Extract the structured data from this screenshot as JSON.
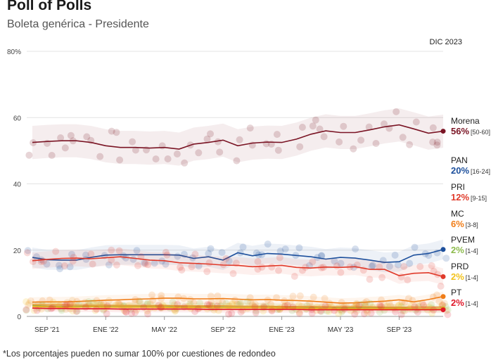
{
  "header": {
    "title": "Poll of Polls",
    "subtitle": "Boleta genérica - Presidente"
  },
  "footnote": "*Los porcentajes pueden no sumar 100% por cuestiones de redondeo",
  "chart_data": {
    "type": "line",
    "title": "Poll of Polls",
    "subtitle": "Boleta genérica - Presidente",
    "date_label": "DIC 2023",
    "xlabel": "",
    "ylabel": "",
    "ylim": [
      0,
      80
    ],
    "y_ticks": [
      "0",
      "20",
      "40",
      "60",
      "80%"
    ],
    "y_tick_values": [
      0,
      20,
      40,
      60,
      80
    ],
    "x_ticks": [
      "SEP '21",
      "ENE '22",
      "MAY '22",
      "SEP '22",
      "ENE '23",
      "MAY '23",
      "SEP '23"
    ],
    "x_tick_dates": [
      "2021-09",
      "2022-01",
      "2022-05",
      "2022-09",
      "2023-01",
      "2023-05",
      "2023-09"
    ],
    "x_range": [
      "2021-08",
      "2023-12"
    ],
    "grid": true,
    "legend": "right",
    "x": [
      "2021-08",
      "2021-09",
      "2021-10",
      "2021-11",
      "2021-12",
      "2022-01",
      "2022-02",
      "2022-03",
      "2022-04",
      "2022-05",
      "2022-06",
      "2022-07",
      "2022-08",
      "2022-09",
      "2022-10",
      "2022-11",
      "2022-12",
      "2023-01",
      "2023-02",
      "2023-03",
      "2023-04",
      "2023-05",
      "2023-06",
      "2023-07",
      "2023-08",
      "2023-09",
      "2023-10",
      "2023-11",
      "2023-12"
    ],
    "series": [
      {
        "name": "Morena",
        "value_label": "56%",
        "range_label": "[50-60]",
        "color": "#7a1424",
        "values": [
          52.5,
          52.8,
          53,
          53,
          52.5,
          51.5,
          51,
          51,
          50.8,
          51,
          50.5,
          52,
          52.5,
          53.2,
          51.5,
          52.3,
          52.6,
          52.5,
          53.5,
          55,
          56,
          55.5,
          55.5,
          56.3,
          57.2,
          57.8,
          56.6,
          55.3,
          55.9
        ]
      },
      {
        "name": "PAN",
        "value_label": "20%",
        "range_label": "[16-24]",
        "color": "#1c4f9c",
        "values": [
          17.8,
          17.1,
          17,
          17,
          17.8,
          18.5,
          18.6,
          18.6,
          18.6,
          18.6,
          18.5,
          17.5,
          18,
          17,
          19.2,
          18.3,
          19,
          18.8,
          18.4,
          18,
          17.3,
          17.8,
          17.6,
          17,
          16.3,
          16.5,
          18.5,
          19,
          20.2
        ]
      },
      {
        "name": "PRI",
        "value_label": "12%",
        "range_label": "[9-15]",
        "color": "#e03a2a",
        "values": [
          16.8,
          17.2,
          17.5,
          17.6,
          17.4,
          17.7,
          18,
          17.5,
          17,
          16.8,
          16.2,
          16,
          15.8,
          15.5,
          15.4,
          15,
          15.2,
          15.4,
          14.8,
          14.6,
          14.9,
          14.8,
          15,
          14.2,
          14.2,
          12.3,
          13,
          13.2,
          12
        ]
      },
      {
        "name": "MC",
        "value_label": "6%",
        "range_label": "[3-8]",
        "color": "#f07d18",
        "values": [
          4.3,
          4.4,
          4.4,
          4.5,
          4.7,
          4.9,
          5,
          5.2,
          5.3,
          5.5,
          5.5,
          5.3,
          5.3,
          5.4,
          5.2,
          5,
          5.1,
          4.9,
          4.8,
          4.6,
          4.3,
          4,
          4.1,
          4.4,
          4.6,
          5,
          4.4,
          5.1,
          6
        ]
      },
      {
        "name": "PVEM",
        "value_label": "2%",
        "range_label": "[1-4]",
        "color": "#8dbb4c",
        "values": [
          3.3,
          3.1,
          3,
          3,
          3.1,
          3,
          3,
          3,
          3.1,
          3.1,
          3,
          3,
          3,
          3,
          3,
          3,
          3,
          2.8,
          2.8,
          2.7,
          2.8,
          2.6,
          2.6,
          2.7,
          2.6,
          2.6,
          2.3,
          2.3,
          2.3
        ]
      },
      {
        "name": "PRD",
        "value_label": "2%",
        "range_label": "[1-4]",
        "color": "#f2c21a",
        "values": [
          3,
          2.9,
          2.8,
          2.8,
          2.9,
          2.8,
          2.8,
          2.8,
          2.8,
          2.7,
          2.7,
          2.7,
          2.7,
          2.6,
          2.6,
          2.6,
          2.6,
          2.5,
          2.5,
          2.4,
          2.4,
          2.3,
          2.3,
          2.3,
          2.3,
          2.3,
          2.2,
          2.2,
          2.2
        ]
      },
      {
        "name": "PT",
        "value_label": "",
        "range_label": "",
        "color": "#e8a23a",
        "values": [
          3.6,
          3.5,
          3.5,
          3.4,
          3.4,
          3.4,
          3.3,
          3.3,
          3.3,
          3.3,
          3.2,
          3.2,
          3.2,
          3.2,
          3.1,
          3.1,
          3.1,
          3,
          3,
          3,
          2.9,
          2.9,
          2.9,
          2.9,
          2.8,
          2.8,
          2.8,
          2.8,
          2.8
        ]
      },
      {
        "name": "PT",
        "value_label": "2%",
        "range_label": "[1-4]",
        "color": "#e0192a",
        "values": [
          2.5,
          2.4,
          2.4,
          2.3,
          2.3,
          2.3,
          2.2,
          2.2,
          2.2,
          2.2,
          2.2,
          2.2,
          2.1,
          2.1,
          2.1,
          2.1,
          2.1,
          2.1,
          2.1,
          2,
          2,
          2,
          2,
          2,
          2,
          2,
          2,
          2,
          2
        ]
      }
    ],
    "legend_items": [
      {
        "name": "Morena",
        "value_label": "56%",
        "range_label": "[50-60]",
        "color": "#7a1424"
      },
      {
        "name": "PAN",
        "value_label": "20%",
        "range_label": "[16-24]",
        "color": "#1c4f9c"
      },
      {
        "name": "PRI",
        "value_label": "12%",
        "range_label": "[9-15]",
        "color": "#e03a2a"
      },
      {
        "name": "MC",
        "value_label": "6%",
        "range_label": "[3-8]",
        "color": "#f07d18"
      },
      {
        "name": "PVEM",
        "value_label": "2%",
        "range_label": "[1-4]",
        "color": "#8dbb4c"
      },
      {
        "name": "PRD",
        "value_label": "2%",
        "range_label": "[1-4]",
        "color": "#f2c21a"
      },
      {
        "name": "PT",
        "value_label": "2%",
        "range_label": "[1-4]",
        "color": "#e0192a"
      }
    ]
  }
}
